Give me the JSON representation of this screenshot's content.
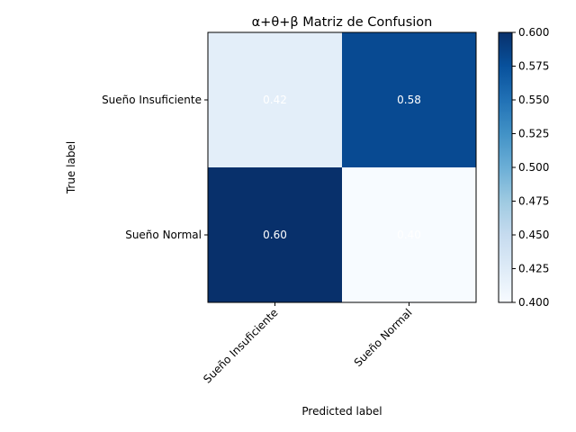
{
  "chart_data": {
    "type": "heatmap",
    "title": "α+θ+β Matriz de Confusion",
    "xlabel": "Predicted label",
    "ylabel": "True label",
    "x_categories": [
      "Sueño Insuficiente",
      "Sueño Normal"
    ],
    "y_categories": [
      "Sueño Insuficiente",
      "Sueño Normal"
    ],
    "values": [
      [
        0.42,
        0.58
      ],
      [
        0.6,
        0.4
      ]
    ],
    "cell_labels": [
      [
        "0.42",
        "0.58"
      ],
      [
        "0.60",
        "0.40"
      ]
    ],
    "colormap": "Blues",
    "colorbar": {
      "range": [
        0.4,
        0.6
      ],
      "ticks": [
        "0.400",
        "0.425",
        "0.450",
        "0.475",
        "0.500",
        "0.525",
        "0.550",
        "0.575",
        "0.600"
      ]
    },
    "colors": {
      "low": "#f7fbff",
      "high": "#08306b",
      "text": "#ffffff"
    }
  }
}
